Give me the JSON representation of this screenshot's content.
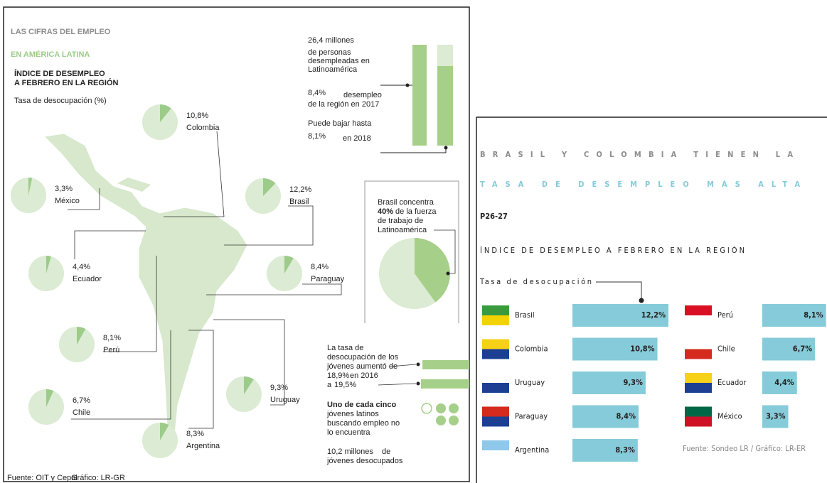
{
  "chart_data": [
    {
      "type": "pies",
      "title": "LAS CIFRAS DEL EMPLEO",
      "subtitle": "EN AMÉRICA LATINA",
      "heading": [
        "ÍNDICE DE DESEMPLEO",
        "A FEBRERO EN LA REGIÓN"
      ],
      "axis_label": "Tasa de desocupación (%)",
      "categories": [
        "Colombia",
        "México",
        "Brasil",
        "Ecuador",
        "Paraguay",
        "Perú",
        "Uruguay",
        "Chile",
        "Argentina"
      ],
      "values": [
        10.8,
        3.3,
        12.2,
        4.4,
        8.4,
        8.1,
        9.3,
        6.7,
        8.3
      ],
      "value_labels": [
        "10,8%",
        "3,3%",
        "12,2%",
        "4,4%",
        "8,4%",
        "8,1%",
        "9,3%",
        "6,7%",
        "8,3%"
      ],
      "color": "#9ccb8a",
      "background_color": "#dcebd3",
      "source": "Fuente: OIT y Cepal",
      "credit": "Gráfico: LR-GR"
    },
    {
      "type": "pie",
      "values": [
        40
      ],
      "value_labels": [
        "40%"
      ],
      "note": [
        "Brasil concentra",
        "de la fuerza",
        "de trabajo de",
        "Latinoamérica"
      ],
      "color": "#a6d08a",
      "background_color": "#dcebd3"
    },
    {
      "type": "bars",
      "values": [
        18.9,
        19.5
      ],
      "value_labels": [
        "18,9%",
        "19,5%"
      ],
      "text": [
        "La tasa de",
        "desocupación de los",
        "jóvenes aumentó de"
      ],
      "suffix": "en 2016",
      "prefix": "a",
      "color": "#a6d08a"
    },
    {
      "type": "hbar",
      "title": "BRASIL Y COLOMBIA TIENEN LA",
      "subtitle": "TASA DE DESEMPLEO MÁS ALTA",
      "code": "P26-27",
      "heading": "ÍNDICE DE DESEMPLEO A FEBRERO EN LA REGIÓN",
      "axis_label": "Tasa de desocupación",
      "categories": [
        "Brasil",
        "Colombia",
        "Uruguay",
        "Paraguay",
        "Argentina",
        "Perú",
        "Chile",
        "Ecuador",
        "México"
      ],
      "values": [
        12.2,
        10.8,
        9.3,
        8.4,
        8.3,
        8.1,
        6.7,
        4.4,
        3.3
      ],
      "value_labels": [
        "12,2%",
        "10,8%",
        "9,3%",
        "8,4%",
        "8,3%",
        "8,1%",
        "6,7%",
        "4,4%",
        "3,3%"
      ],
      "color": "#86cbd9",
      "source": "Fuente: Sondeo LR / Gráfico: LR-ER"
    }
  ],
  "stats": {
    "total": "26,4 millones",
    "total_note": [
      "de personas",
      "desempleadas en",
      "Latinoamérica"
    ],
    "rate_2017": "8,4%",
    "rate_2017_note": [
      "desempleo",
      "de la región en 2017"
    ],
    "forecast_intro": "Puede bajar hasta",
    "rate_2018": "8,1%",
    "rate_2018_note": "en 2018",
    "youth_share": [
      "Uno de cada cinco",
      "jóvenes latinos",
      "buscando empleo no",
      "lo encuentra"
    ],
    "youth_total": "10,2 millones",
    "youth_total_note": [
      "de",
      "jóvenes desocupados"
    ]
  }
}
